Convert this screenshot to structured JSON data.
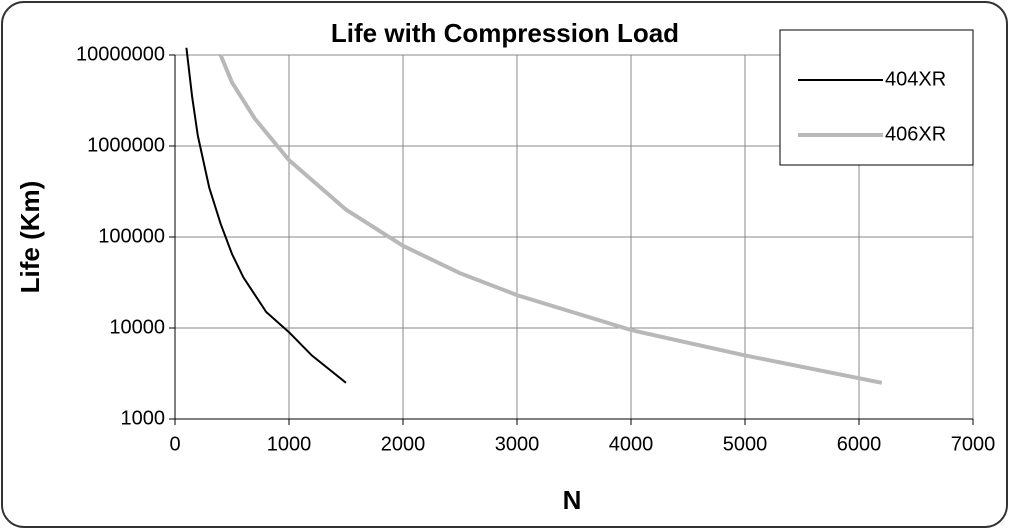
{
  "chart_data": {
    "type": "line",
    "title": "Life with Compression Load",
    "xlabel": "N",
    "ylabel": "Life (Km)",
    "xlim": [
      0,
      7000
    ],
    "xticks": [
      0,
      1000,
      2000,
      3000,
      4000,
      5000,
      6000,
      7000
    ],
    "ylim": [
      1000,
      10000000
    ],
    "yticks": [
      1000,
      10000,
      100000,
      1000000,
      10000000
    ],
    "yscale": "log",
    "grid": true,
    "legend": "upper right",
    "series": [
      {
        "name": "404XR",
        "color": "#000000",
        "x": [
          100,
          150,
          200,
          300,
          400,
          500,
          600,
          800,
          1000,
          1200,
          1500
        ],
        "values": [
          12000000,
          3500000,
          1300000,
          350000,
          140000,
          65000,
          36000,
          15000,
          9000,
          5000,
          2500
        ]
      },
      {
        "name": "406XR",
        "color": "#b8b8b8",
        "x": [
          400,
          500,
          700,
          1000,
          1500,
          2000,
          2500,
          3000,
          4000,
          5000,
          6200
        ],
        "values": [
          10000000,
          5000000,
          2000000,
          700000,
          200000,
          80000,
          40000,
          23000,
          9500,
          5000,
          2500
        ]
      }
    ]
  }
}
